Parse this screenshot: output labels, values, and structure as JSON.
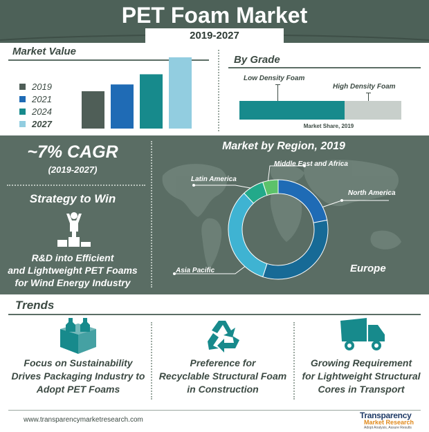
{
  "header": {
    "title": "PET Foam Market",
    "subtitle": "2019-2027"
  },
  "market_value": {
    "title": "Market Value",
    "legend": [
      {
        "label": "2019",
        "color": "#4f5e57"
      },
      {
        "label": "2021",
        "color": "#1f6bb5"
      },
      {
        "label": "2024",
        "color": "#178a8c"
      },
      {
        "label": "2027",
        "color": "#92cde0"
      }
    ]
  },
  "by_grade": {
    "title": "By Grade",
    "low_label": "Low Density Foam",
    "high_label": "High Density Foam",
    "caption": "Market Share, 2019"
  },
  "cagr": {
    "value": "~7% CAGR",
    "period": "(2019-2027)"
  },
  "strategy": {
    "title": "Strategy to Win",
    "text": [
      "R&D into Efficient",
      "and Lightweight PET Foams",
      "for Wind Energy Industry"
    ]
  },
  "region": {
    "title": "Market by Region, 2019",
    "labels": {
      "mea": "Middle East and Africa",
      "latam": "Latin America",
      "na": "North America",
      "apac": "Asia Pacific",
      "europe": "Europe"
    }
  },
  "trends": {
    "title": "Trends",
    "items": [
      {
        "l1": "Focus on Sustainability",
        "l2": "Drives Packaging Industry to",
        "l3": "Adopt PET Foams"
      },
      {
        "l1": "Preference for",
        "l2": "Recyclable Structural Foam",
        "l3": "in Construction"
      },
      {
        "l1": "Growing Requirement",
        "l2": "for Lightweight Structural",
        "l3": "Cores in Transport"
      }
    ]
  },
  "footer": {
    "url": "www.transparencymarketresearch.com",
    "logo_l1": "Transparency",
    "logo_l2": "Market Research",
    "logo_l3": "Adopt Analysis, Assure Results"
  },
  "chart_data": [
    {
      "type": "bar",
      "categories": [
        "2019",
        "2021",
        "2024",
        "2027"
      ],
      "values": [
        55,
        65,
        80,
        105
      ],
      "ylim": [
        0,
        110
      ],
      "colors": [
        "#4f5e57",
        "#1f6bb5",
        "#178a8c",
        "#92cde0"
      ]
    },
    {
      "type": "bar",
      "orientation": "horizontal-stacked",
      "categories": [
        "Low Density Foam",
        "High Density Foam"
      ],
      "values": [
        65,
        35
      ],
      "colors": [
        "#178a8c",
        "#c8cfcb"
      ]
    },
    {
      "type": "pie",
      "style": "donut",
      "categories": [
        "North America",
        "Europe",
        "Asia Pacific",
        "Latin America",
        "Middle East and Africa"
      ],
      "values": [
        22,
        33,
        33,
        7,
        5
      ],
      "colors": [
        "#1f6bb5",
        "#176a96",
        "#3fb3d2",
        "#23a98a",
        "#5cc26a"
      ]
    }
  ]
}
